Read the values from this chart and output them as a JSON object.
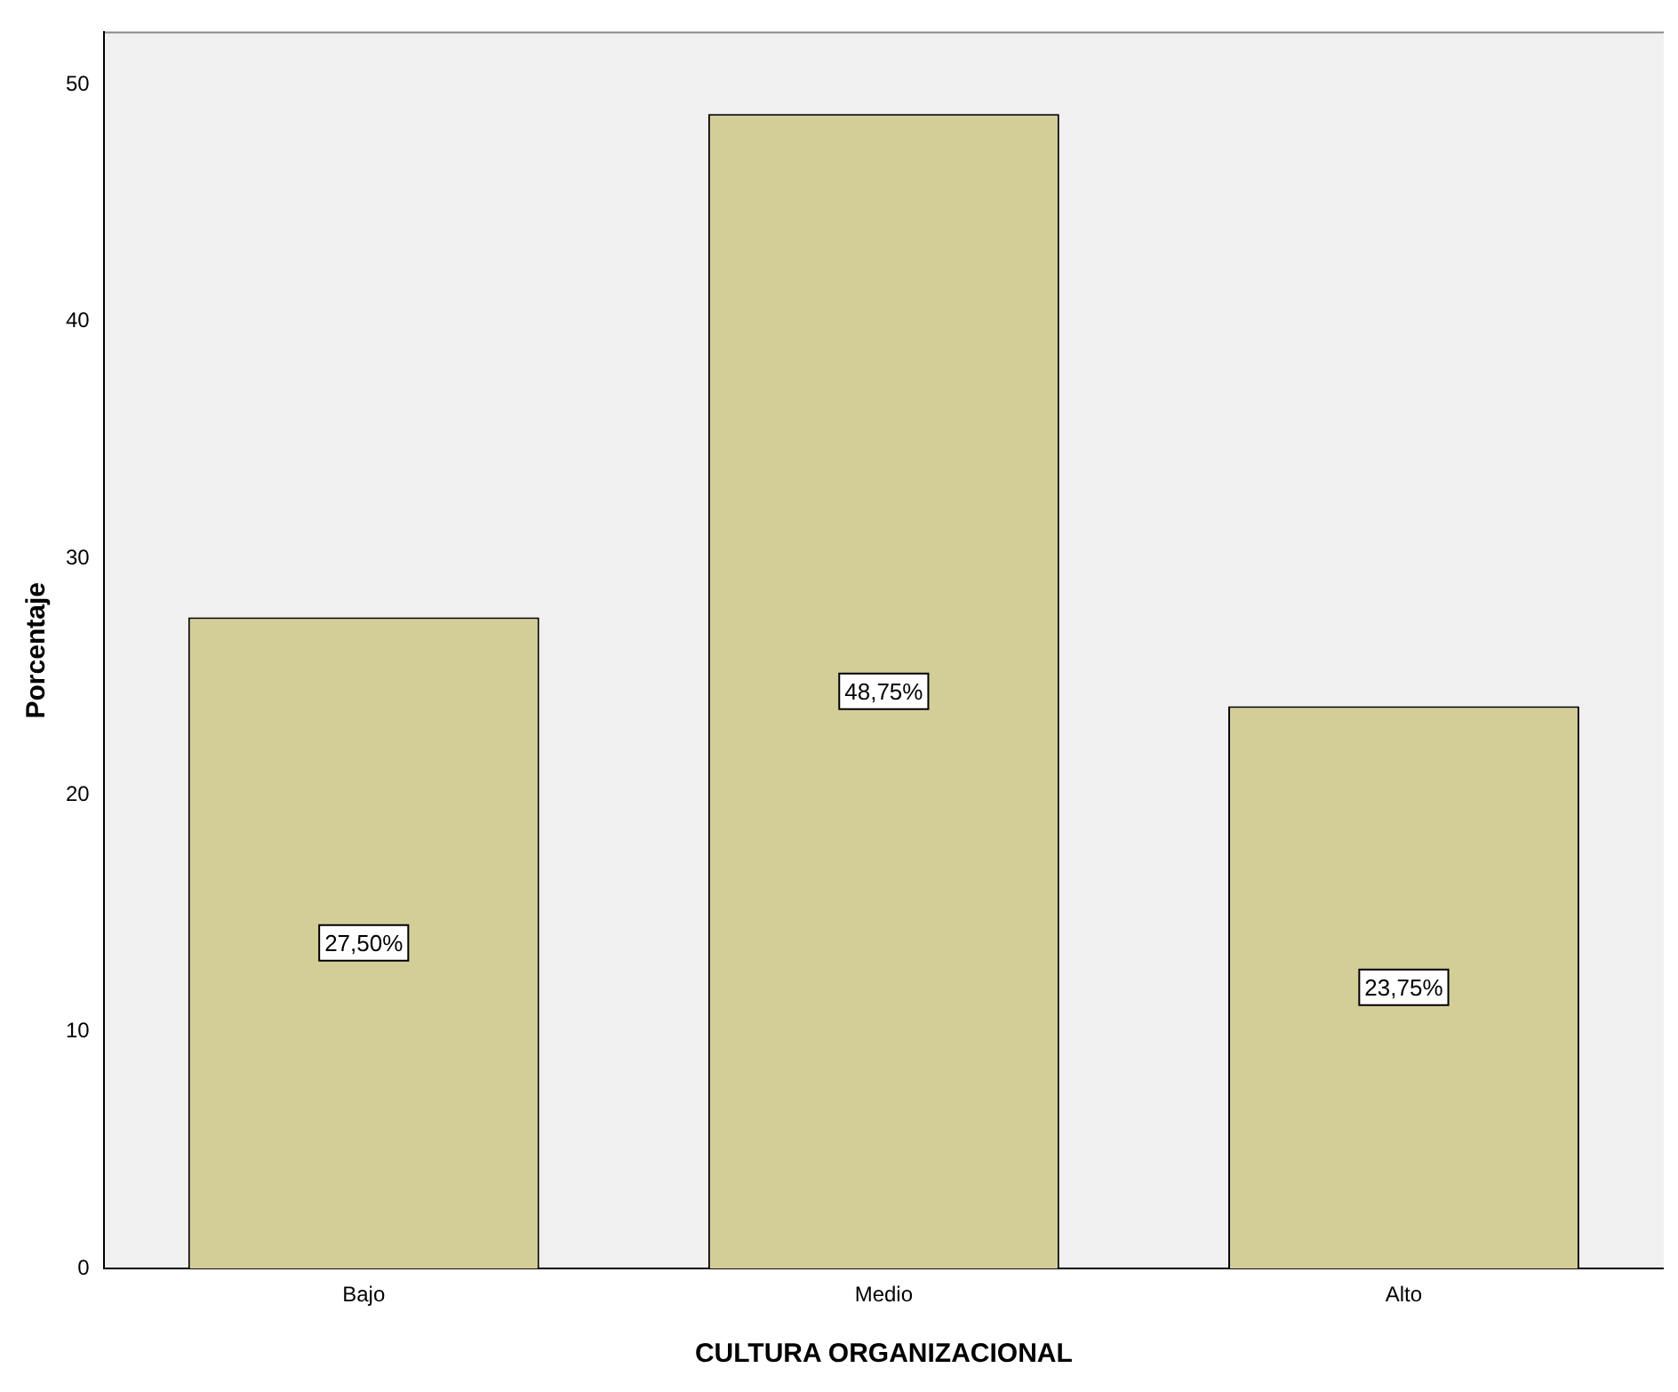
{
  "chart_data": {
    "type": "bar",
    "xlabel": "CULTURA ORGANIZACIONAL",
    "ylabel": "Porcentaje",
    "categories": [
      "Bajo",
      "Medio",
      "Alto"
    ],
    "values": [
      27.5,
      48.75,
      23.75
    ],
    "value_labels": [
      "27,50%",
      "48,75%",
      "23,75%"
    ],
    "color": "#d3ce97",
    "ylim": [
      0,
      52.2
    ],
    "yticks": [
      0,
      10,
      20,
      30,
      40,
      50
    ],
    "grid": false,
    "legend": false
  }
}
